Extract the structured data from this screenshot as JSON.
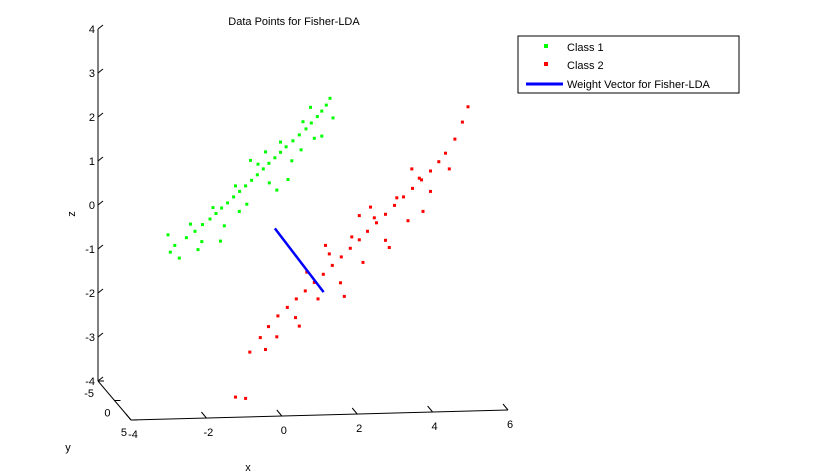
{
  "chart_data": {
    "type": "scatter",
    "title": "Data Points for Fisher-LDA",
    "xlabel": "x",
    "ylabel": "y",
    "zlabel": "z",
    "xlim": [
      -4,
      6
    ],
    "ylim": [
      -5,
      5
    ],
    "zlim": [
      -4,
      4
    ],
    "x_ticks": [
      "-4",
      "-2",
      "0",
      "2",
      "4",
      "6"
    ],
    "y_ticks": [
      "-5",
      "0",
      "5"
    ],
    "z_ticks": [
      "-4",
      "-3",
      "-2",
      "-1",
      "0",
      "1",
      "2",
      "3",
      "4"
    ],
    "grid": false,
    "legend_position": "top-right",
    "series": [
      {
        "name": "Class 1",
        "color": "#00ff00",
        "marker": "dot",
        "points": [
          [
            -3.14,
            -1.11
          ],
          [
            -3.02,
            -0.95
          ],
          [
            -2.71,
            -0.77
          ],
          [
            -2.48,
            -0.62
          ],
          [
            -2.28,
            -0.46
          ],
          [
            -2.08,
            -0.33
          ],
          [
            -1.92,
            -0.2
          ],
          [
            -1.77,
            -0.07
          ],
          [
            -1.61,
            0.05
          ],
          [
            -1.45,
            0.19
          ],
          [
            -1.29,
            0.32
          ],
          [
            -1.13,
            0.45
          ],
          [
            -0.97,
            0.58
          ],
          [
            -0.82,
            0.71
          ],
          [
            -0.66,
            0.85
          ],
          [
            -0.51,
            0.98
          ],
          [
            -0.35,
            1.11
          ],
          [
            -0.2,
            1.24
          ],
          [
            -0.05,
            1.37
          ],
          [
            0.13,
            1.51
          ],
          [
            0.3,
            1.65
          ],
          [
            0.48,
            1.79
          ],
          [
            0.62,
            1.93
          ],
          [
            0.78,
            2.08
          ],
          [
            0.9,
            2.21
          ],
          [
            1.02,
            2.35
          ],
          [
            1.12,
            2.51
          ],
          [
            -2.6,
            -0.45
          ],
          [
            -2.3,
            -0.86
          ],
          [
            -2.0,
            -0.06
          ],
          [
            -1.7,
            -0.49
          ],
          [
            -1.4,
            0.45
          ],
          [
            -1.1,
            0.02
          ],
          [
            -0.8,
            0.96
          ],
          [
            -0.5,
            0.52
          ],
          [
            -0.2,
            1.48
          ],
          [
            0.1,
            1.04
          ],
          [
            0.4,
            1.96
          ],
          [
            0.7,
            1.57
          ],
          [
            -3.2,
            -0.7
          ],
          [
            -1.0,
            1.05
          ],
          [
            0.0,
            0.6
          ],
          [
            -1.8,
            -0.85
          ],
          [
            0.9,
            1.62
          ],
          [
            -2.4,
            -1.05
          ],
          [
            -0.6,
            1.25
          ],
          [
            0.6,
            2.3
          ],
          [
            -1.3,
            -0.15
          ],
          [
            -0.3,
            0.35
          ],
          [
            0.35,
            1.3
          ],
          [
            -2.9,
            -1.25
          ],
          [
            1.2,
            2.05
          ]
        ]
      },
      {
        "name": "Class 2",
        "color": "#ff0000",
        "marker": "dot",
        "points": [
          [
            -1.4,
            -4.52
          ],
          [
            -1.13,
            -4.55
          ],
          [
            -1.02,
            -3.46
          ],
          [
            -0.74,
            -3.12
          ],
          [
            -0.52,
            -2.86
          ],
          [
            -0.27,
            -2.61
          ],
          [
            -0.02,
            -2.41
          ],
          [
            0.22,
            -2.21
          ],
          [
            0.46,
            -2.02
          ],
          [
            0.7,
            -1.82
          ],
          [
            0.94,
            -1.63
          ],
          [
            1.18,
            -1.42
          ],
          [
            1.42,
            -1.22
          ],
          [
            1.66,
            -1.02
          ],
          [
            1.9,
            -0.82
          ],
          [
            2.12,
            -0.62
          ],
          [
            2.36,
            -0.42
          ],
          [
            2.6,
            -0.22
          ],
          [
            2.84,
            -0.01
          ],
          [
            3.08,
            0.19
          ],
          [
            3.32,
            0.39
          ],
          [
            3.56,
            0.59
          ],
          [
            3.8,
            0.8
          ],
          [
            4.02,
            1.02
          ],
          [
            4.2,
            1.22
          ],
          [
            4.45,
            1.55
          ],
          [
            4.8,
            2.31
          ],
          [
            0.2,
            -2.65
          ],
          [
            0.5,
            -1.58
          ],
          [
            0.8,
            -2.21
          ],
          [
            1.1,
            -1.15
          ],
          [
            1.4,
            -1.83
          ],
          [
            1.7,
            -0.75
          ],
          [
            2.0,
            -1.35
          ],
          [
            2.3,
            -0.3
          ],
          [
            2.6,
            -0.83
          ],
          [
            2.9,
            0.17
          ],
          [
            3.2,
            -0.37
          ],
          [
            3.5,
            0.63
          ],
          [
            3.8,
            0.32
          ],
          [
            -0.3,
            -3.1
          ],
          [
            1.0,
            -0.95
          ],
          [
            1.5,
            -2.15
          ],
          [
            2.2,
            -0.05
          ],
          [
            2.7,
            -1.0
          ],
          [
            3.3,
            0.85
          ],
          [
            3.6,
            -0.15
          ],
          [
            0.3,
            -2.85
          ],
          [
            4.3,
            0.85
          ],
          [
            1.9,
            -0.25
          ],
          [
            -0.6,
            -3.4
          ],
          [
            4.65,
            1.95
          ]
        ]
      }
    ],
    "weight_vector": {
      "name": "Weight Vector for Fisher-LDA",
      "color": "#0000ff",
      "from": [
        -0.35,
        -0.55
      ],
      "to": [
        0.95,
        -2.05
      ]
    }
  }
}
